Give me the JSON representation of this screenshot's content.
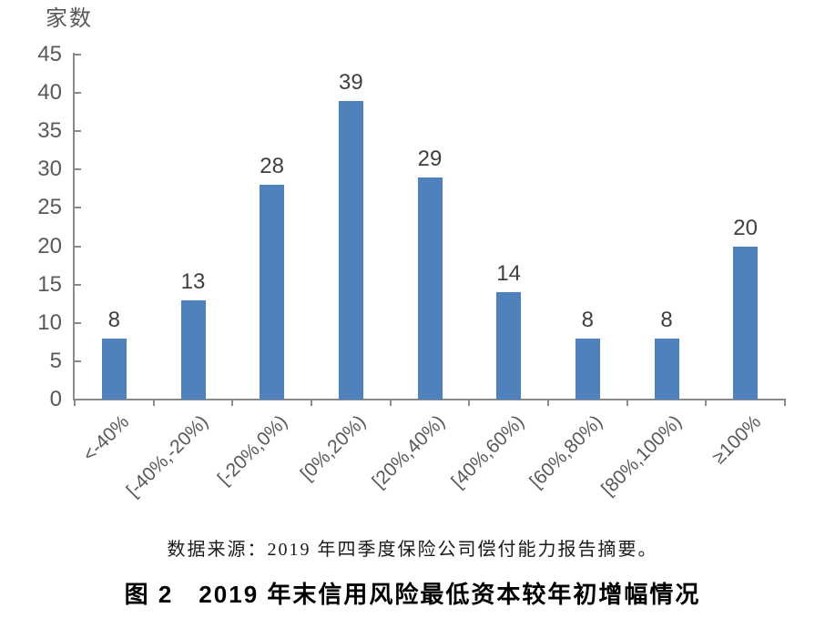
{
  "figure": {
    "background": "#ffffff",
    "source_note": "数据来源：2019 年四季度保险公司偿付能力报告摘要。",
    "title": "图 2　2019 年末信用风险最低资本较年初增幅情况"
  },
  "chart_data": {
    "type": "bar",
    "title": "图 2　2019 年末信用风险最低资本较年初增幅情况",
    "ylabel": "家数",
    "xlabel": "",
    "categories": [
      "<-40%",
      "[-40%,-20%)",
      "[-20%,0%)",
      "[0%,20%)",
      "[20%,40%)",
      "[40%,60%)",
      "[60%,80%)",
      "[80%,100%)",
      "≥100%"
    ],
    "values": [
      8,
      13,
      28,
      39,
      29,
      14,
      8,
      8,
      20
    ],
    "ylim": [
      0,
      45
    ],
    "ytick_step": 5,
    "ytick_labels": [
      "0",
      "5",
      "10",
      "15",
      "20",
      "25",
      "30",
      "35",
      "40",
      "45"
    ],
    "grid": false,
    "legend": "none",
    "data_labels": true,
    "bar_color": "#4F81BD",
    "axis_color": "#8a8a8a",
    "tick_label_color": "#595959",
    "data_label_color": "#3f3f3f"
  }
}
